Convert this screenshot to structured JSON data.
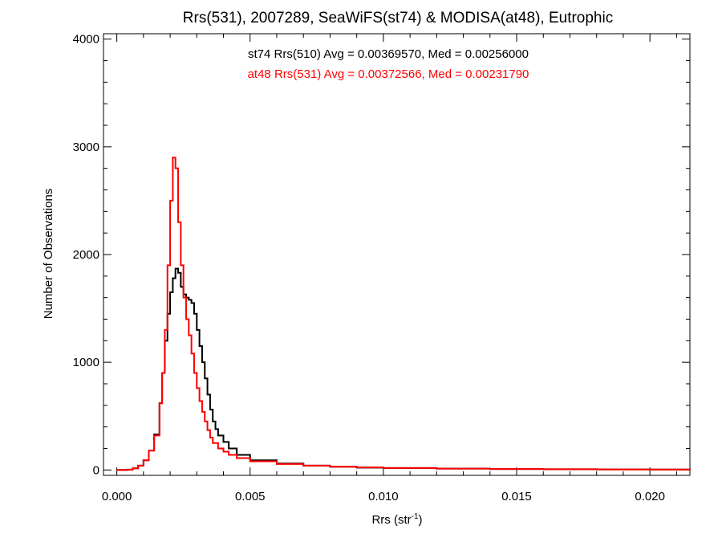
{
  "chart_data": {
    "type": "histogram",
    "title": "Rrs(531), 2007289, SeaWiFS(st74) & MODISA(at48), Eutrophic",
    "xlabel": "Rrs (str",
    "xlabel_superscript": "-1",
    "xlabel_suffix": ")",
    "ylabel": "Number of Observations",
    "xlim": [
      -0.0005,
      0.0215
    ],
    "ylim": [
      -50,
      4050
    ],
    "x_ticks": [
      0.0,
      0.005,
      0.01,
      0.015,
      0.02
    ],
    "x_tick_labels": [
      "0.000",
      "0.005",
      "0.010",
      "0.015",
      "0.020"
    ],
    "y_ticks": [
      0,
      1000,
      2000,
      3000,
      4000
    ],
    "y_tick_labels": [
      "0",
      "1000",
      "2000",
      "3000",
      "4000"
    ],
    "annotations": [
      {
        "text": "st74 Rrs(510) Avg = 0.00369570, Med = 0.00256000",
        "color": "#000000"
      },
      {
        "text": "at48 Rrs(531) Avg = 0.00372566, Med = 0.00231790",
        "color": "#ff0000"
      }
    ],
    "series": [
      {
        "color": "#000000",
        "x": [
          0.0,
          0.0004,
          0.0006,
          0.0008,
          0.001,
          0.0012,
          0.0014,
          0.0016,
          0.0017,
          0.0018,
          0.0019,
          0.002,
          0.0021,
          0.0022,
          0.0023,
          0.0024,
          0.0025,
          0.0026,
          0.0027,
          0.0028,
          0.0029,
          0.003,
          0.0031,
          0.0032,
          0.0033,
          0.0034,
          0.0035,
          0.0036,
          0.0037,
          0.0038,
          0.004,
          0.0042,
          0.0045,
          0.005,
          0.006,
          0.007,
          0.008,
          0.009,
          0.01,
          0.012,
          0.014,
          0.016,
          0.018,
          0.02,
          0.0215
        ],
        "values": [
          0,
          3,
          15,
          40,
          90,
          180,
          330,
          620,
          900,
          1200,
          1450,
          1650,
          1780,
          1870,
          1830,
          1700,
          1630,
          1600,
          1580,
          1550,
          1450,
          1300,
          1150,
          1000,
          850,
          700,
          560,
          450,
          380,
          320,
          260,
          200,
          140,
          90,
          60,
          40,
          30,
          22,
          18,
          12,
          9,
          7,
          5,
          4,
          3
        ]
      },
      {
        "color": "#ff0000",
        "x": [
          0.0,
          0.0004,
          0.0006,
          0.0008,
          0.001,
          0.0012,
          0.0014,
          0.0016,
          0.0017,
          0.0018,
          0.0019,
          0.002,
          0.0021,
          0.0022,
          0.0023,
          0.0024,
          0.0025,
          0.0026,
          0.0027,
          0.0028,
          0.0029,
          0.003,
          0.0031,
          0.0032,
          0.0033,
          0.0034,
          0.0035,
          0.0036,
          0.0038,
          0.004,
          0.0042,
          0.0045,
          0.005,
          0.006,
          0.007,
          0.008,
          0.009,
          0.01,
          0.012,
          0.014,
          0.016,
          0.018,
          0.02,
          0.0215
        ],
        "values": [
          0,
          3,
          15,
          40,
          90,
          180,
          320,
          620,
          900,
          1300,
          1900,
          2500,
          2900,
          2800,
          2300,
          1900,
          1600,
          1400,
          1250,
          1080,
          900,
          760,
          640,
          540,
          450,
          370,
          300,
          250,
          200,
          170,
          140,
          110,
          80,
          55,
          40,
          30,
          24,
          18,
          12,
          9,
          7,
          5,
          4,
          3
        ]
      }
    ]
  }
}
